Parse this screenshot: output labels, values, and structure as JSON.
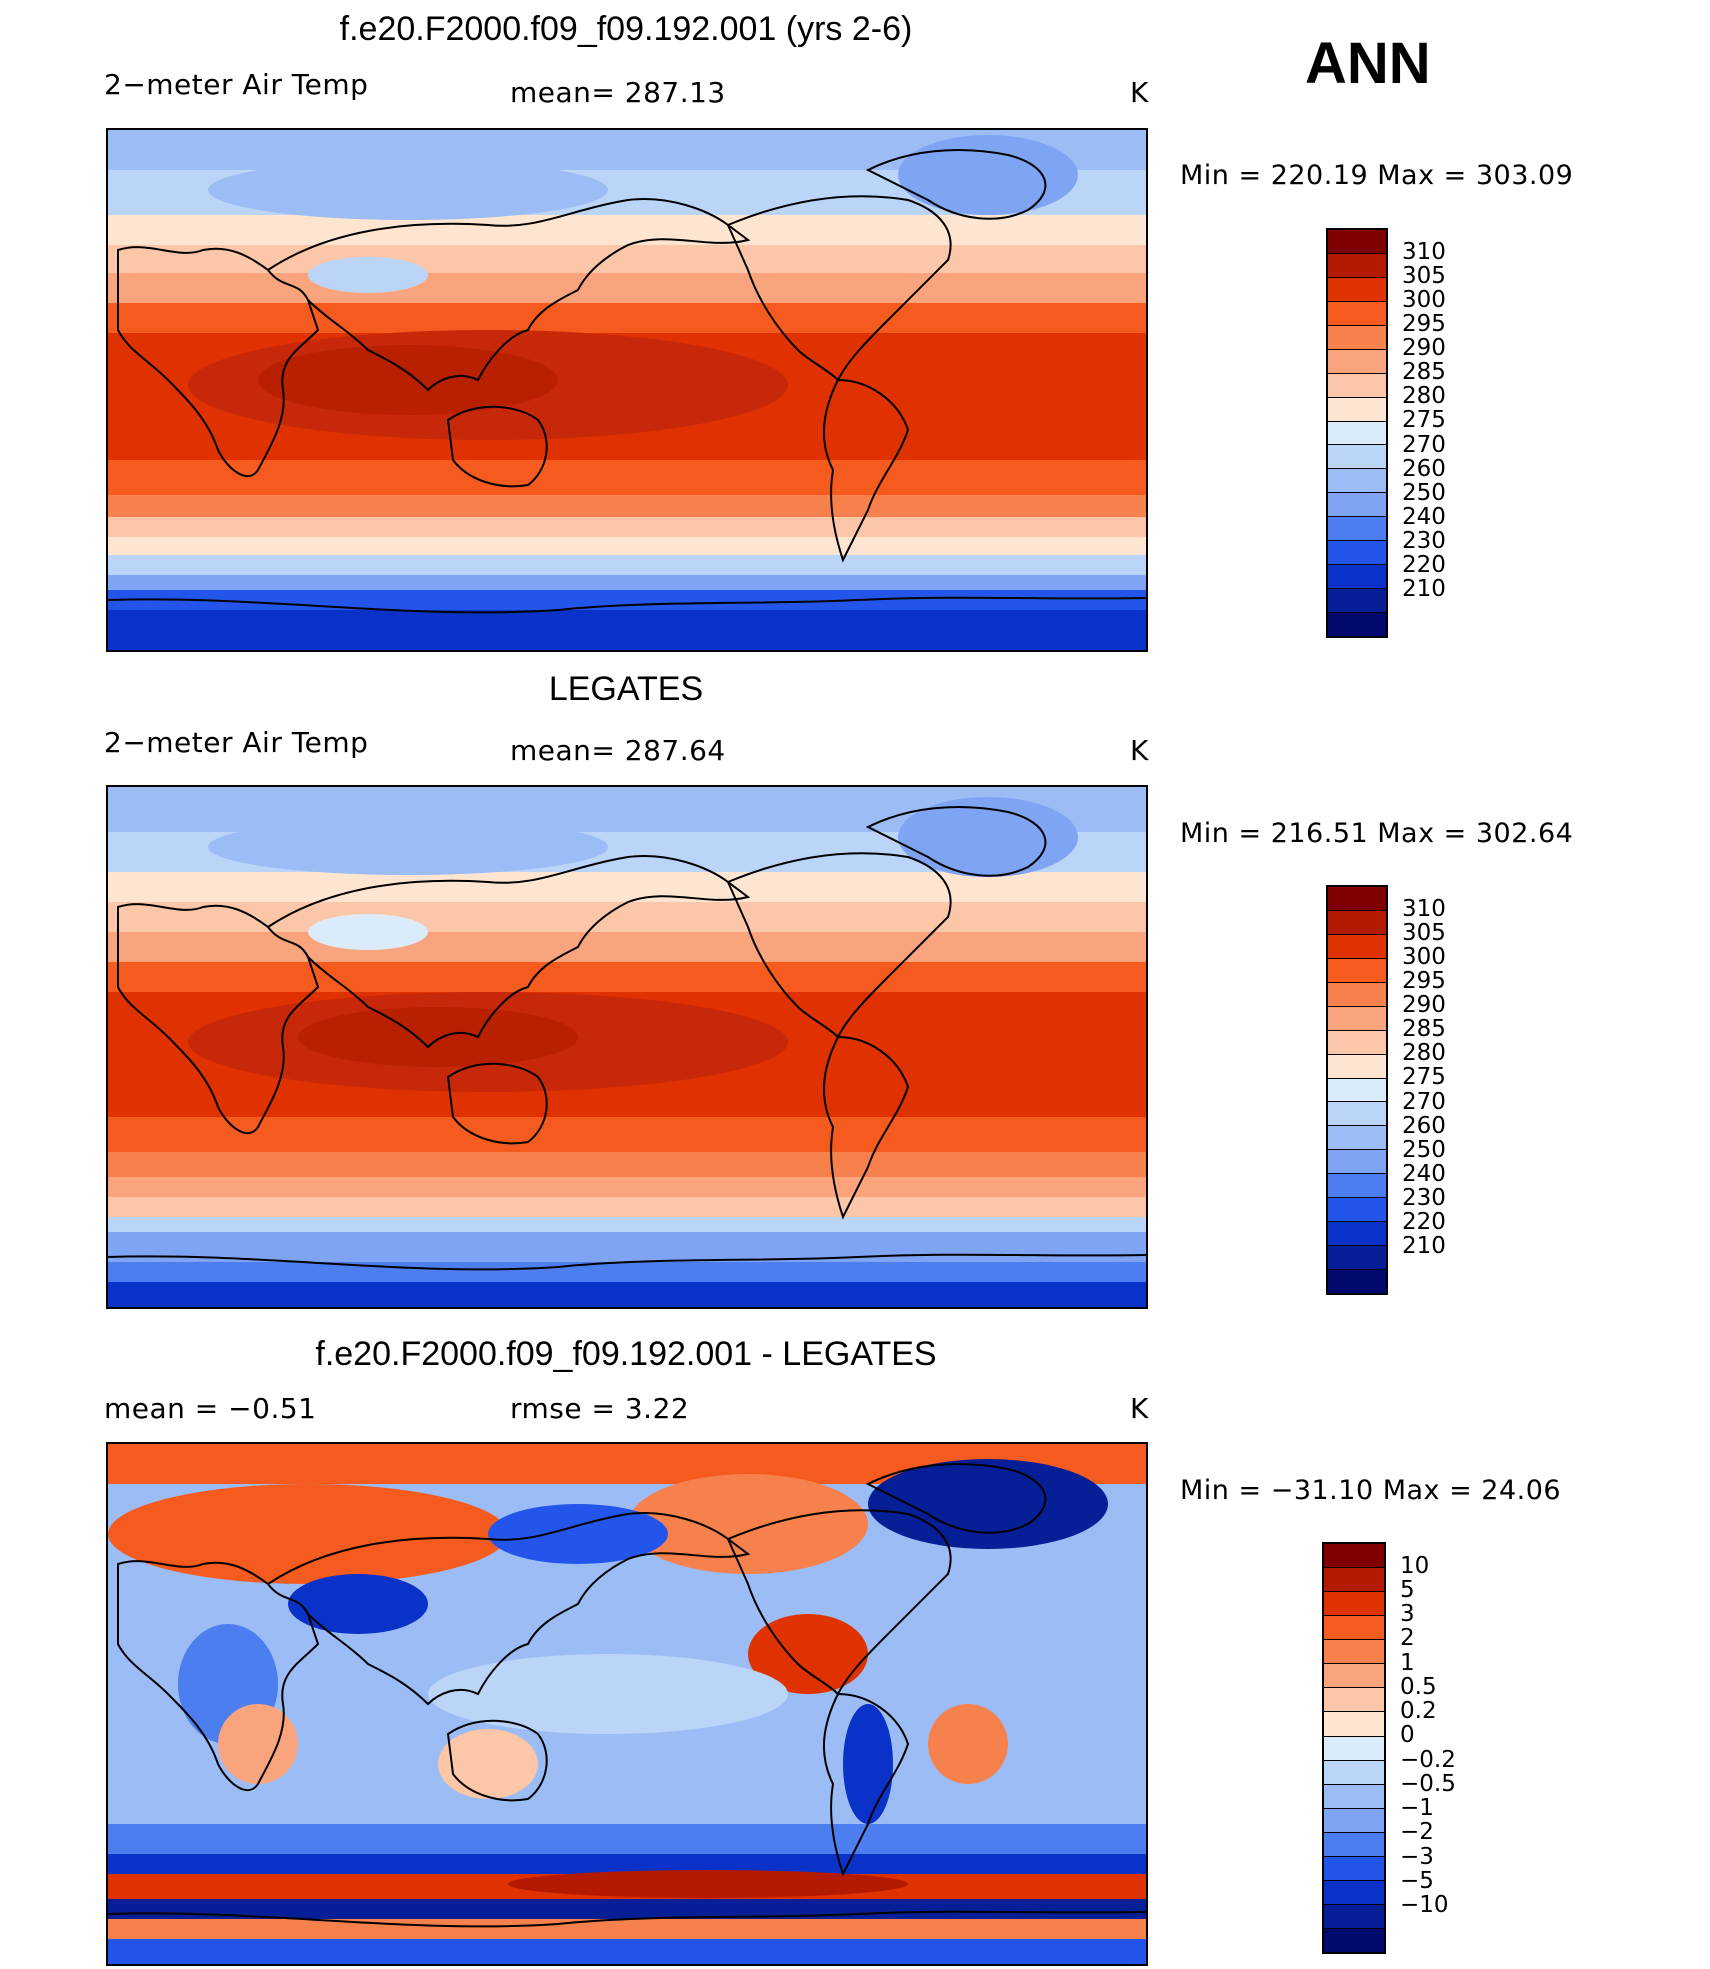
{
  "season": "ANN",
  "units": "K",
  "panels": [
    {
      "id": "model",
      "title": "f.e20.F2000.f09_f09.192.001 (yrs 2-6)",
      "left_text": "2−meter Air Temp",
      "center_text": "mean=  287.13",
      "units": "K",
      "minmax": "Min  =  220.19  Max  =  303.09",
      "colorbar": {
        "colors": [
          "#800000",
          "#b31a00",
          "#e03200",
          "#f55a1e",
          "#f7814d",
          "#f9a47c",
          "#fcc6a8",
          "#fde5d2",
          "#dcebfa",
          "#bad5f8",
          "#9bbcf5",
          "#7ea4f3",
          "#4d7ef0",
          "#2455eb",
          "#0a32c8",
          "#061f96",
          "#030a6e"
        ],
        "labels": [
          "310",
          "305",
          "300",
          "295",
          "290",
          "285",
          "280",
          "275",
          "270",
          "260",
          "250",
          "240",
          "230",
          "220",
          "210"
        ]
      }
    },
    {
      "id": "obs",
      "title": "LEGATES",
      "left_text": "2−meter Air Temp",
      "center_text": "mean=  287.64",
      "units": "K",
      "minmax": "Min  =  216.51  Max  =  302.64",
      "colorbar": {
        "colors": [
          "#800000",
          "#b31a00",
          "#e03200",
          "#f55a1e",
          "#f7814d",
          "#f9a47c",
          "#fcc6a8",
          "#fde5d2",
          "#dcebfa",
          "#bad5f8",
          "#9bbcf5",
          "#7ea4f3",
          "#4d7ef0",
          "#2455eb",
          "#0a32c8",
          "#061f96",
          "#030a6e"
        ],
        "labels": [
          "310",
          "305",
          "300",
          "295",
          "290",
          "285",
          "280",
          "275",
          "270",
          "260",
          "250",
          "240",
          "230",
          "220",
          "210"
        ]
      }
    },
    {
      "id": "diff",
      "title": "f.e20.F2000.f09_f09.192.001 - LEGATES",
      "left_text": "mean  =      −0.51",
      "center_text": "rmse  =       3.22",
      "units": "K",
      "minmax": "Min  =  −31.10  Max  =    24.06",
      "colorbar": {
        "colors": [
          "#800000",
          "#b31a00",
          "#e03200",
          "#f55a1e",
          "#f7814d",
          "#f9a47c",
          "#fcc6a8",
          "#fde5d2",
          "#dcebfa",
          "#bad5f8",
          "#9bbcf5",
          "#7ea4f3",
          "#4d7ef0",
          "#2455eb",
          "#0a32c8",
          "#061f96",
          "#030a6e"
        ],
        "labels": [
          "10",
          "5",
          "3",
          "2",
          "1",
          "0.5",
          "0.2",
          "0",
          "−0.2",
          "−0.5",
          "−1",
          "−2",
          "−3",
          "−5",
          "−10"
        ]
      }
    }
  ]
}
